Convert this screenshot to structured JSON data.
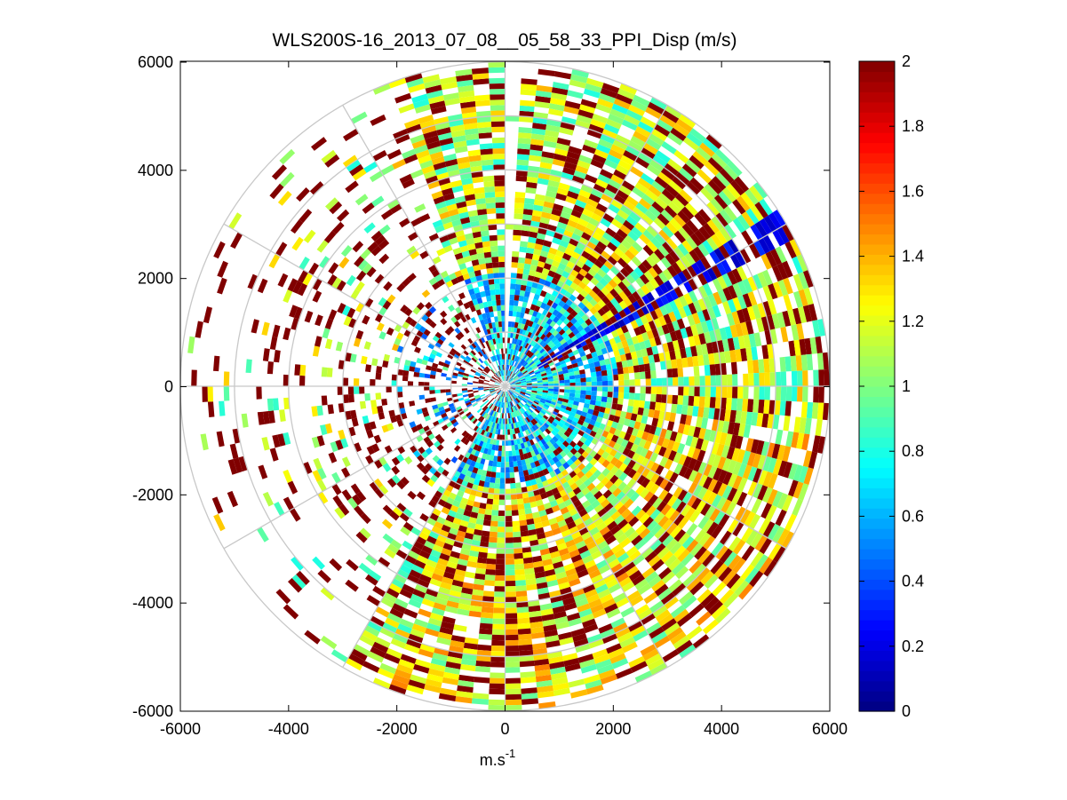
{
  "chart_data": {
    "type": "heatmap",
    "subtype": "polar-ppi-scan",
    "title": "WLS200S-16_2013_07_08__05_58_33_PPI_Disp (m/s)",
    "xlabel": "m.s",
    "xlabel_superscript": "-1",
    "ylabel": "",
    "xlim": [
      -6000,
      6000
    ],
    "ylim": [
      -6000,
      6000
    ],
    "xticks": [
      -6000,
      -4000,
      -2000,
      0,
      2000,
      4000,
      6000
    ],
    "yticks": [
      6000,
      4000,
      2000,
      0,
      -2000,
      -4000,
      -6000
    ],
    "xtick_labels": [
      "-6000",
      "-4000",
      "-2000",
      "0",
      "2000",
      "4000",
      "6000"
    ],
    "ytick_labels": [
      "6000",
      "4000",
      "2000",
      "0",
      "-2000",
      "-4000",
      "-6000"
    ],
    "max_range": 6000,
    "range_rings": [
      1000,
      2000,
      3000,
      4000,
      5000,
      6000
    ],
    "spokes_deg": [
      0,
      30,
      60,
      90,
      120,
      150,
      180,
      210,
      240,
      270,
      300,
      330
    ],
    "colorbar": {
      "min": 0,
      "max": 2,
      "colormap": "jet",
      "ticks": [
        0,
        0.2,
        0.4,
        0.6,
        0.8,
        1,
        1.2,
        1.4,
        1.6,
        1.8,
        2
      ],
      "tick_labels": [
        "0",
        "0.2",
        "0.4",
        "0.6",
        "0.8",
        "1",
        "1.2",
        "1.4",
        "1.6",
        "1.8",
        "2"
      ]
    },
    "grid": "polar",
    "data_summary": {
      "near_field_mean": 0.7,
      "far_field_mean": 1.1,
      "south_east_sector_mean": 1.2,
      "saturated_patches_value": 2,
      "low_value_beam_azimuth_deg": 60,
      "sparse_sector_deg": [
        210,
        340
      ]
    }
  }
}
